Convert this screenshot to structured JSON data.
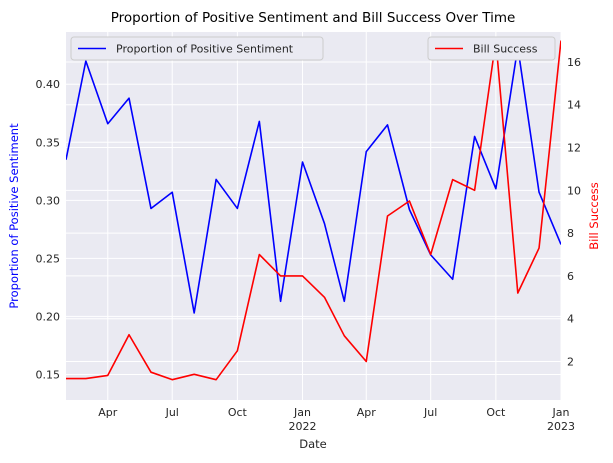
{
  "chart_data": {
    "type": "line",
    "title": "Proportion of Positive Sentiment and Bill Success Over Time",
    "xlabel": "Date",
    "ylabel_left": "Proportion of Positive Sentiment",
    "ylabel_right": "Bill Success",
    "x": [
      "2021-02",
      "2021-03",
      "2021-04",
      "2021-05",
      "2021-06",
      "2021-07",
      "2021-08",
      "2021-09",
      "2021-10",
      "2021-11",
      "2021-12",
      "2022-01",
      "2022-02",
      "2022-03",
      "2022-04",
      "2022-05",
      "2022-06",
      "2022-07",
      "2022-08",
      "2022-09",
      "2022-10",
      "2022-11",
      "2022-12",
      "2023-01"
    ],
    "x_ticks": [
      {
        "date": "2021-04",
        "label": "Apr",
        "sub": ""
      },
      {
        "date": "2021-07",
        "label": "Jul",
        "sub": ""
      },
      {
        "date": "2021-10",
        "label": "Oct",
        "sub": ""
      },
      {
        "date": "2022-01",
        "label": "Jan",
        "sub": "2022"
      },
      {
        "date": "2022-04",
        "label": "Apr",
        "sub": ""
      },
      {
        "date": "2022-07",
        "label": "Jul",
        "sub": ""
      },
      {
        "date": "2022-10",
        "label": "Oct",
        "sub": ""
      },
      {
        "date": "2023-01",
        "label": "Jan",
        "sub": "2023"
      }
    ],
    "x_range": [
      "2021-02",
      "2023-01"
    ],
    "y_left_range": [
      0.128,
      0.445
    ],
    "y_left_ticks": [
      0.15,
      0.2,
      0.25,
      0.3,
      0.35,
      0.4
    ],
    "y_left_tick_labels": [
      "0.15",
      "0.20",
      "0.25",
      "0.30",
      "0.35",
      "0.40"
    ],
    "y_right_range": [
      0.2,
      17.4
    ],
    "y_right_ticks": [
      2,
      4,
      6,
      8,
      10,
      12,
      14,
      16
    ],
    "y_right_tick_labels": [
      "2",
      "4",
      "6",
      "8",
      "10",
      "12",
      "14",
      "16"
    ],
    "grid": true,
    "series": [
      {
        "name": "Proportion of Positive Sentiment",
        "axis": "left",
        "color": "#0000ff",
        "legend_position": "top-left",
        "values": [
          0.335,
          0.42,
          0.366,
          0.388,
          0.293,
          0.307,
          0.203,
          0.318,
          0.293,
          0.368,
          0.213,
          0.333,
          0.28,
          0.213,
          0.342,
          0.365,
          0.292,
          0.253,
          0.232,
          0.355,
          0.31,
          0.432,
          0.307,
          0.262
        ]
      },
      {
        "name": "Bill Success",
        "axis": "right",
        "color": "#ff0000",
        "legend_position": "top-right",
        "values": [
          1.2,
          1.2,
          1.35,
          3.25,
          1.5,
          1.15,
          1.4,
          1.15,
          2.5,
          7.0,
          6.0,
          6.0,
          5.0,
          3.2,
          2.0,
          8.8,
          9.5,
          7.0,
          10.5,
          10.0,
          17.0,
          5.2,
          7.3,
          17.0
        ]
      }
    ]
  }
}
